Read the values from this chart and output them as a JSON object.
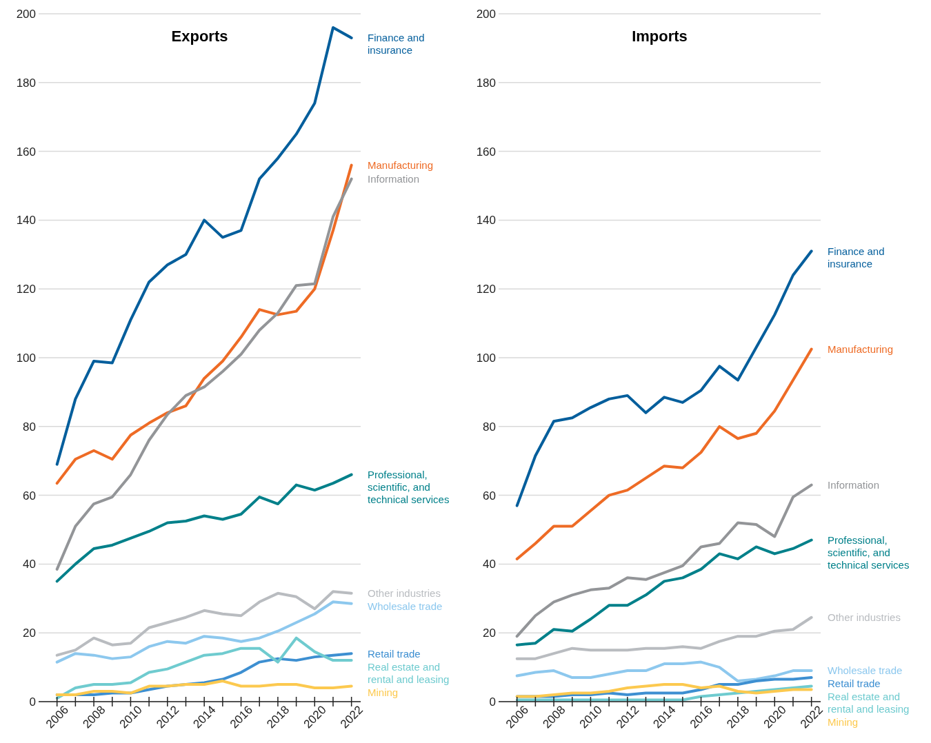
{
  "chart_data": [
    {
      "type": "line",
      "title": "Exports",
      "x": [
        2006,
        2007,
        2008,
        2009,
        2010,
        2011,
        2012,
        2013,
        2014,
        2015,
        2016,
        2017,
        2018,
        2019,
        2020,
        2021,
        2022
      ],
      "xlim": [
        2005,
        2022.5
      ],
      "xticks": [
        2006,
        {
          "value": 2007,
          "label": null
        },
        2008,
        {
          "value": 2009,
          "label": null
        },
        2010,
        {
          "value": 2011,
          "label": null
        },
        2012,
        {
          "value": 2013,
          "label": null
        },
        2014,
        {
          "value": 2015,
          "label": null
        },
        2016,
        {
          "value": 2017,
          "label": null
        },
        2018,
        {
          "value": 2019,
          "label": null
        },
        2020,
        {
          "value": 2021,
          "label": null
        },
        2022
      ],
      "ylim": [
        0,
        200
      ],
      "yticks": [
        0,
        20,
        40,
        60,
        80,
        100,
        120,
        140,
        160,
        180,
        200
      ],
      "grid": "y",
      "series": [
        {
          "name": "Finance and insurance",
          "color": "#035e9c",
          "values": [
            69,
            88,
            99,
            98.5,
            111,
            122,
            127,
            130,
            140,
            135,
            137,
            152,
            158,
            165,
            174,
            196,
            193
          ]
        },
        {
          "name": "Manufacturing",
          "color": "#ee6b25",
          "values": [
            63.5,
            70.5,
            73,
            70.5,
            77.5,
            81,
            84,
            86,
            94,
            99,
            106,
            114,
            112.5,
            113.5,
            120,
            137,
            156
          ]
        },
        {
          "name": "Information",
          "color": "#939598",
          "values": [
            38.5,
            51,
            57.5,
            59.5,
            66,
            76,
            83.5,
            89,
            91.5,
            96,
            101,
            108,
            113,
            121,
            121.5,
            141,
            152
          ]
        },
        {
          "name": "Professional, scientific, and technical services",
          "color": "#00808a",
          "values": [
            35,
            40,
            44.5,
            45.5,
            47.5,
            49.5,
            52,
            52.5,
            54,
            53,
            54.5,
            59.5,
            57.5,
            63,
            61.5,
            63.5,
            66
          ]
        },
        {
          "name": "Other industries",
          "color": "#b9bcc0",
          "values": [
            13.5,
            15,
            18.5,
            16.5,
            17,
            21.5,
            23,
            24.5,
            26.5,
            25.5,
            25,
            29,
            31.5,
            30.5,
            27,
            32,
            31.5
          ]
        },
        {
          "name": "Wholesale trade",
          "color": "#8dc8ee",
          "values": [
            11.5,
            14,
            13.5,
            12.5,
            13,
            16,
            17.5,
            17,
            19,
            18.5,
            17.5,
            18.5,
            20.5,
            23,
            25.5,
            29,
            28.5
          ]
        },
        {
          "name": "Retail trade",
          "color": "#3d8fd1",
          "values": [
            2,
            2,
            2,
            2.5,
            2.5,
            3.5,
            4.5,
            5,
            5.5,
            6.5,
            8.5,
            11.5,
            12.5,
            12,
            13,
            13.5,
            14
          ]
        },
        {
          "name": "Real estate and rental and leasing",
          "color": "#6fcbcf",
          "values": [
            1,
            4,
            5,
            5,
            5.5,
            8.5,
            9.5,
            11.5,
            13.5,
            14,
            15.5,
            15.5,
            11.5,
            18.5,
            14.5,
            12,
            12
          ]
        },
        {
          "name": "Mining",
          "color": "#fcc94f",
          "values": [
            2,
            2,
            3,
            3,
            2.5,
            4.5,
            4.5,
            5,
            5,
            6,
            4.5,
            4.5,
            5,
            5,
            4,
            4,
            4.5
          ]
        }
      ]
    },
    {
      "type": "line",
      "title": "Imports",
      "x": [
        2006,
        2007,
        2008,
        2009,
        2010,
        2011,
        2012,
        2013,
        2014,
        2015,
        2016,
        2017,
        2018,
        2019,
        2020,
        2021,
        2022
      ],
      "xlim": [
        2005,
        2022.5
      ],
      "xticks": [
        2006,
        {
          "value": 2007,
          "label": null
        },
        2008,
        {
          "value": 2009,
          "label": null
        },
        2010,
        {
          "value": 2011,
          "label": null
        },
        2012,
        {
          "value": 2013,
          "label": null
        },
        2014,
        {
          "value": 2015,
          "label": null
        },
        2016,
        {
          "value": 2017,
          "label": null
        },
        2018,
        {
          "value": 2019,
          "label": null
        },
        2020,
        {
          "value": 2021,
          "label": null
        },
        2022
      ],
      "ylim": [
        0,
        200
      ],
      "yticks": [
        0,
        20,
        40,
        60,
        80,
        100,
        120,
        140,
        160,
        180,
        200
      ],
      "grid": "y",
      "series": [
        {
          "name": "Finance and insurance",
          "color": "#035e9c",
          "values": [
            57,
            71.5,
            81.5,
            82.5,
            85.5,
            88,
            89,
            84,
            88.5,
            87,
            90.5,
            97.5,
            93.5,
            103,
            112.5,
            124,
            131
          ]
        },
        {
          "name": "Manufacturing",
          "color": "#ee6b25",
          "values": [
            41.5,
            46,
            51,
            51,
            55.5,
            60,
            61.5,
            65,
            68.5,
            68,
            72.5,
            80,
            76.5,
            78,
            84.5,
            93.5,
            102.5
          ]
        },
        {
          "name": "Information",
          "color": "#939598",
          "values": [
            19,
            25,
            29,
            31,
            32.5,
            33,
            36,
            35.5,
            37.5,
            39.5,
            45,
            46,
            52,
            51.5,
            48,
            59.5,
            63
          ]
        },
        {
          "name": "Professional, scientific, and technical services",
          "color": "#00808a",
          "values": [
            16.5,
            17,
            21,
            20.5,
            24,
            28,
            28,
            31,
            35,
            36,
            38.5,
            43,
            41.5,
            45,
            43,
            44.5,
            47
          ]
        },
        {
          "name": "Other industries",
          "color": "#b9bcc0",
          "values": [
            12.5,
            12.5,
            14,
            15.5,
            15,
            15,
            15,
            15.5,
            15.5,
            16,
            15.5,
            17.5,
            19,
            19,
            20.5,
            21,
            24.5
          ]
        },
        {
          "name": "Wholesale trade",
          "color": "#8dc8ee",
          "values": [
            7.5,
            8.5,
            9,
            7,
            7,
            8,
            9,
            9,
            11,
            11,
            11.5,
            10,
            6,
            6.5,
            7.5,
            9,
            9
          ]
        },
        {
          "name": "Retail trade",
          "color": "#3d8fd1",
          "values": [
            1.5,
            1.5,
            1.5,
            2,
            2,
            2.5,
            2,
            2.5,
            2.5,
            2.5,
            3.5,
            5,
            5,
            6,
            6.5,
            6.5,
            7
          ]
        },
        {
          "name": "Real estate and rental and leasing",
          "color": "#6fcbcf",
          "values": [
            0.5,
            0.5,
            0.5,
            0.5,
            0.5,
            0.5,
            0.5,
            0.5,
            0.5,
            0.5,
            1.5,
            2,
            2.5,
            3,
            3.5,
            4,
            4.5
          ]
        },
        {
          "name": "Mining",
          "color": "#fcc94f",
          "values": [
            1.5,
            1.5,
            2,
            2.5,
            2.5,
            3,
            4,
            4.5,
            5,
            5,
            4,
            4.5,
            3,
            2.5,
            3,
            3.5,
            3.5
          ]
        }
      ]
    }
  ]
}
